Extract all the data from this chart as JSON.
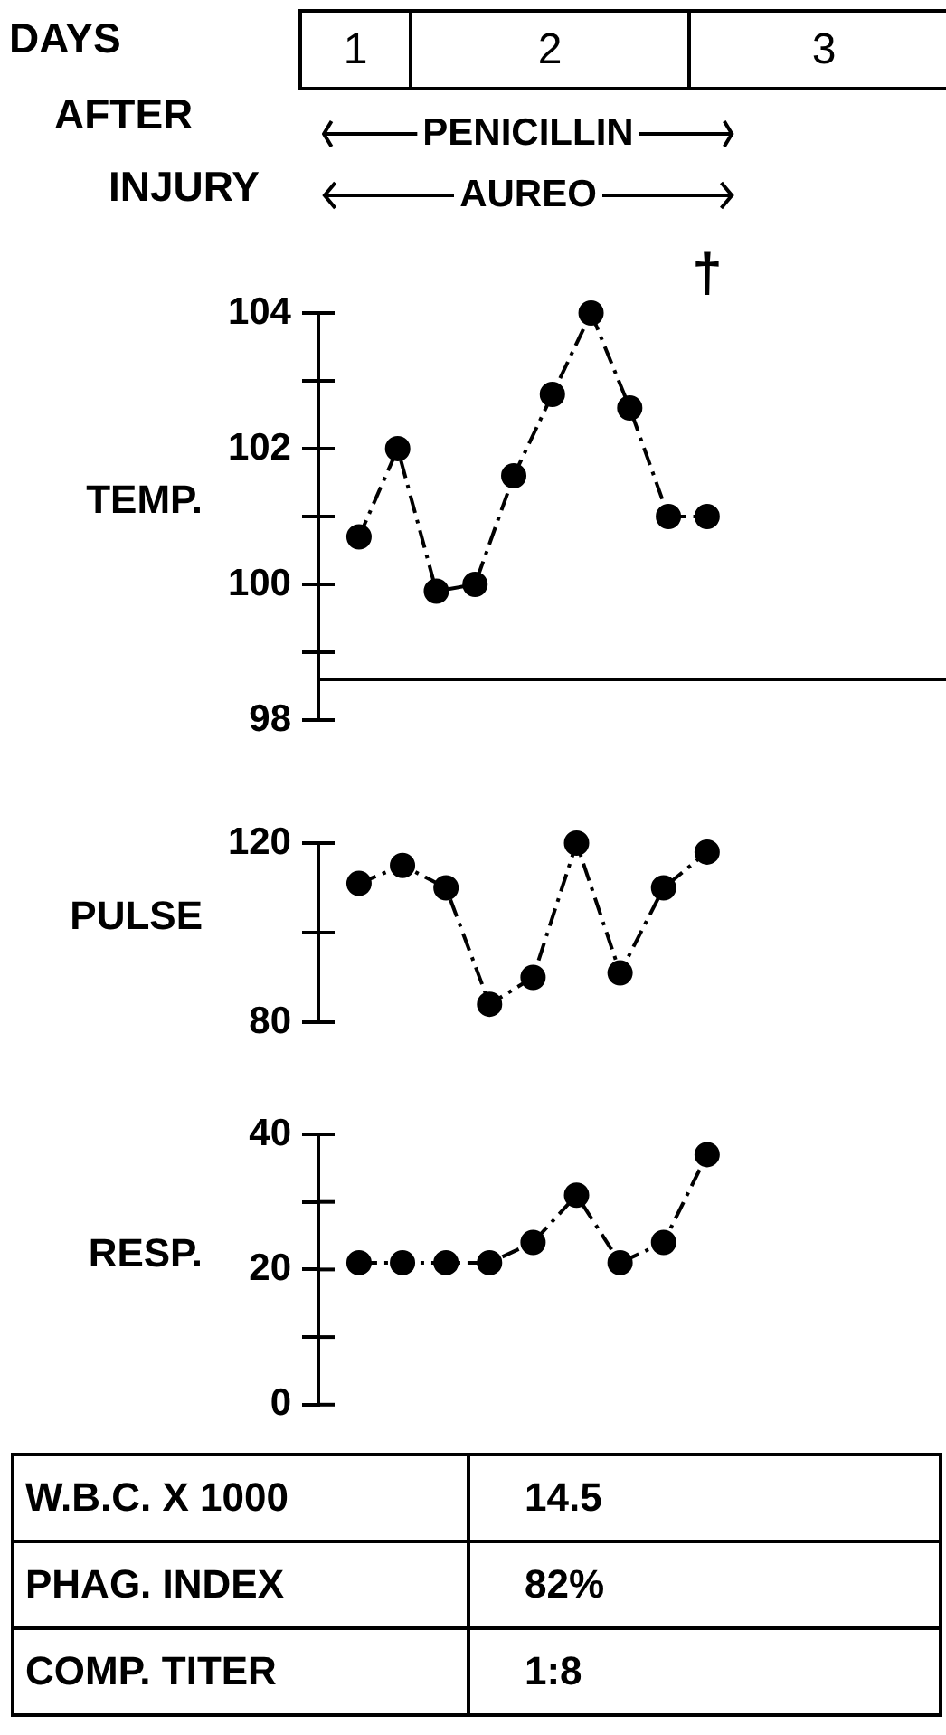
{
  "chart_data": [
    {
      "type": "other",
      "title": "DAYS AFTER INJURY",
      "categories": [
        "1",
        "2",
        "3"
      ],
      "annotations": [
        "PENICILLIN",
        "AUREO"
      ]
    },
    {
      "type": "line",
      "ylabel": "TEMP.",
      "categories": [
        null,
        null,
        null,
        null,
        null,
        null,
        null,
        null,
        null,
        null
      ],
      "values": [
        100.7,
        102.0,
        99.9,
        100.0,
        101.6,
        102.8,
        104.0,
        102.6,
        101.0,
        101.0
      ],
      "color": "#000000",
      "marker": "circle",
      "line_style": "dashed",
      "ylim": [
        98,
        104
      ],
      "yticks": [
        98,
        {
          "value": 99,
          "label": null
        },
        100,
        {
          "value": 101,
          "label": null
        },
        102,
        {
          "value": 103,
          "label": null
        },
        104
      ],
      "ref_lines": [
        {
          "axis": "y",
          "value": 98.6
        }
      ],
      "annotations": [
        "†"
      ]
    },
    {
      "type": "line",
      "ylabel": "PULSE",
      "categories": [
        null,
        null,
        null,
        null,
        null,
        null,
        null,
        null,
        null
      ],
      "values": [
        111,
        115,
        110,
        84,
        90,
        120,
        91,
        110,
        118
      ],
      "color": "#000000",
      "marker": "circle",
      "line_style": "dashed",
      "ylim": [
        80,
        120
      ],
      "yticks": [
        80,
        {
          "value": 100,
          "label": null
        },
        120
      ]
    },
    {
      "type": "line",
      "ylabel": "RESP.",
      "categories": [
        null,
        null,
        null,
        null,
        null,
        null,
        null,
        null,
        null
      ],
      "values": [
        21,
        21,
        21,
        21,
        24,
        31,
        21,
        24,
        37
      ],
      "color": "#000000",
      "marker": "circle",
      "line_style": "dashed",
      "ylim": [
        0,
        40
      ],
      "yticks": [
        0,
        {
          "value": 10,
          "label": null
        },
        20,
        {
          "value": 30,
          "label": null
        },
        40
      ]
    },
    {
      "type": "other",
      "annotations": [
        "W.B.C. X 1000",
        "14.5",
        "PHAG. INDEX",
        "82%",
        "COMP. TITER",
        "1:8"
      ]
    }
  ]
}
